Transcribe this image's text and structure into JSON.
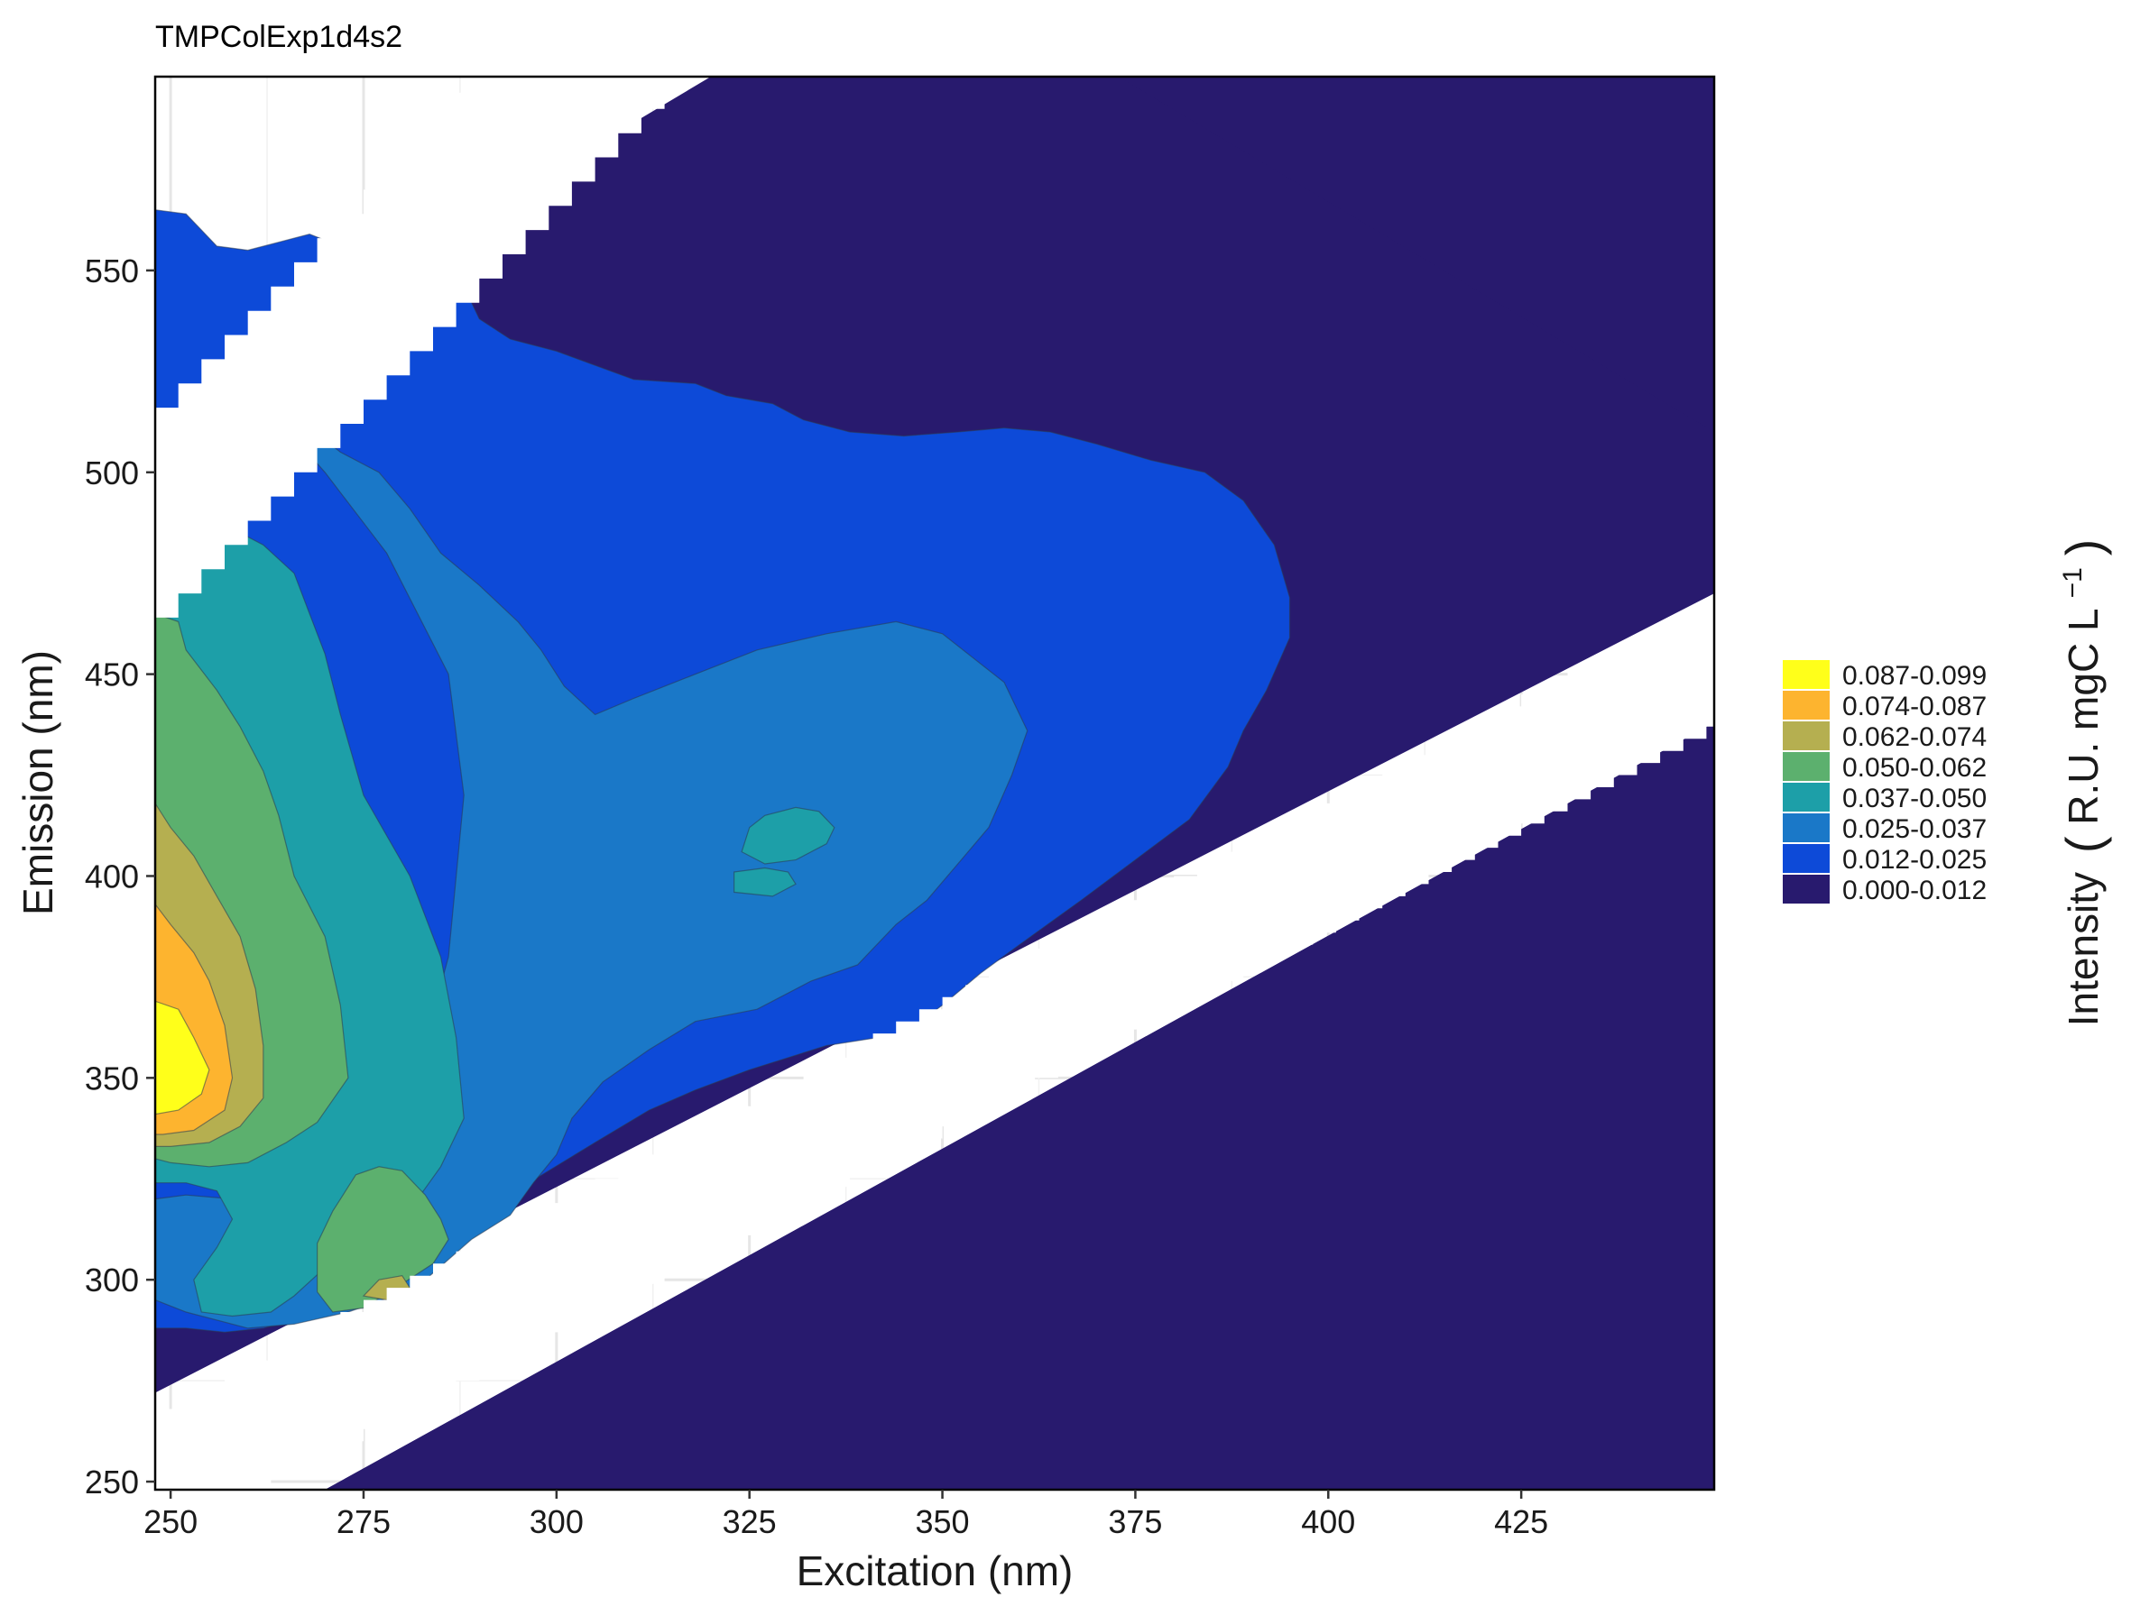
{
  "chart_data": {
    "type": "heatmap",
    "subtype": "filled-contour",
    "title": "TMPColExp1d4s2",
    "xlabel": "Excitation (nm)",
    "ylabel": "Emission (nm)",
    "xlim": [
      248,
      450
    ],
    "ylim": [
      248,
      598
    ],
    "x_ticks": [
      250,
      275,
      300,
      325,
      350,
      375,
      400,
      425
    ],
    "y_ticks": [
      250,
      300,
      350,
      400,
      450,
      500,
      550
    ],
    "grid": true,
    "legend_position": "right",
    "legend": {
      "title_main": "Intensity",
      "title_units": "R.U. mgC L",
      "title_exponent": "−1",
      "entries": [
        {
          "label": "0.087-0.099",
          "color": "#FFFF1A"
        },
        {
          "label": "0.074-0.087",
          "color": "#FDB42F"
        },
        {
          "label": "0.062-0.074",
          "color": "#B5AF50"
        },
        {
          "label": "0.050-0.062",
          "color": "#5CB06E"
        },
        {
          "label": "0.037-0.050",
          "color": "#1D9FA8"
        },
        {
          "label": "0.025-0.037",
          "color": "#1A78C8"
        },
        {
          "label": "0.012-0.025",
          "color": "#0D4AD8"
        },
        {
          "label": "0.000-0.012",
          "color": "#281A6E"
        }
      ]
    },
    "masked_regions": [
      {
        "name": "rayleigh-first-order",
        "description": "white band where emission approx equals excitation"
      },
      {
        "name": "rayleigh-second-order",
        "description": "white band where emission approx equals twice excitation"
      }
    ],
    "contour_levels": [
      0.012,
      0.025,
      0.037,
      0.05,
      0.062,
      0.074,
      0.087,
      0.099
    ],
    "peaks": [
      {
        "ex": 250,
        "em": 350,
        "range": "0.087-0.099"
      },
      {
        "ex": 330,
        "em": 410,
        "range": "0.037-0.050"
      }
    ],
    "regions": [
      {
        "range": "0.012-0.025",
        "polygon": [
          [
            248,
            565
          ],
          [
            252,
            564
          ],
          [
            256,
            556
          ],
          [
            260,
            555
          ],
          [
            264,
            557
          ],
          [
            268,
            559
          ],
          [
            272,
            556
          ],
          [
            279,
            555
          ],
          [
            283,
            553
          ],
          [
            288,
            546
          ],
          [
            290,
            538
          ],
          [
            294,
            533
          ],
          [
            300,
            530
          ],
          [
            310,
            523
          ],
          [
            318,
            522
          ],
          [
            322,
            519
          ],
          [
            328,
            517
          ],
          [
            332,
            513
          ],
          [
            338,
            510
          ],
          [
            345,
            509
          ],
          [
            352,
            510
          ],
          [
            358,
            511
          ],
          [
            364,
            510
          ],
          [
            370,
            507
          ],
          [
            377,
            503
          ],
          [
            384,
            500
          ],
          [
            389,
            493
          ],
          [
            393,
            482
          ],
          [
            395,
            469
          ],
          [
            395,
            459
          ],
          [
            392,
            446
          ],
          [
            389,
            436
          ],
          [
            387,
            427
          ],
          [
            382,
            414
          ],
          [
            375,
            404
          ],
          [
            368,
            394
          ],
          [
            360,
            383
          ],
          [
            355,
            376
          ],
          [
            350,
            368
          ],
          [
            345,
            361
          ],
          [
            335,
            358
          ],
          [
            325,
            352
          ],
          [
            318,
            347
          ],
          [
            312,
            342
          ],
          [
            305,
            334
          ],
          [
            299,
            327
          ],
          [
            293,
            320
          ],
          [
            290,
            313
          ],
          [
            287,
            308
          ],
          [
            284,
            303
          ],
          [
            280,
            299
          ],
          [
            274,
            295
          ],
          [
            268,
            291
          ],
          [
            262,
            288
          ],
          [
            257,
            287
          ],
          [
            252,
            288
          ],
          [
            248,
            288
          ]
        ]
      },
      {
        "range": "0.025-0.037",
        "polygon": [
          [
            264,
            513
          ],
          [
            268,
            511
          ],
          [
            272,
            505
          ],
          [
            277,
            500
          ],
          [
            281,
            491
          ],
          [
            285,
            480
          ],
          [
            290,
            472
          ],
          [
            295,
            463
          ],
          [
            298,
            456
          ],
          [
            301,
            447
          ],
          [
            305,
            440
          ],
          [
            310,
            444
          ],
          [
            318,
            450
          ],
          [
            326,
            456
          ],
          [
            335,
            460
          ],
          [
            344,
            463
          ],
          [
            350,
            460
          ],
          [
            358,
            448
          ],
          [
            361,
            436
          ],
          [
            359,
            425
          ],
          [
            356,
            412
          ],
          [
            352,
            403
          ],
          [
            348,
            394
          ],
          [
            344,
            388
          ],
          [
            339,
            378
          ],
          [
            333,
            374
          ],
          [
            326,
            367
          ],
          [
            318,
            364
          ],
          [
            312,
            357
          ],
          [
            306,
            349
          ],
          [
            302,
            340
          ],
          [
            300,
            331
          ],
          [
            297,
            324
          ],
          [
            294,
            316
          ],
          [
            289,
            310
          ],
          [
            286,
            305
          ],
          [
            283,
            300
          ],
          [
            279,
            296
          ],
          [
            273,
            292
          ],
          [
            266,
            289
          ],
          [
            260,
            288
          ],
          [
            252,
            292
          ],
          [
            248,
            295
          ],
          [
            248,
            320
          ],
          [
            252,
            321
          ],
          [
            258,
            320
          ],
          [
            262,
            322
          ],
          [
            266,
            326
          ],
          [
            270,
            330
          ],
          [
            276,
            336
          ],
          [
            282,
            352
          ],
          [
            286,
            380
          ],
          [
            288,
            420
          ],
          [
            286,
            450
          ],
          [
            278,
            480
          ],
          [
            270,
            500
          ]
        ]
      },
      {
        "range": "0.037-0.050",
        "polygon": [
          [
            249,
            485
          ],
          [
            252,
            488
          ],
          [
            256,
            488
          ],
          [
            262,
            482
          ],
          [
            266,
            475
          ],
          [
            268,
            465
          ],
          [
            270,
            455
          ],
          [
            272,
            440
          ],
          [
            275,
            420
          ],
          [
            281,
            400
          ],
          [
            285,
            380
          ],
          [
            287,
            360
          ],
          [
            288,
            340
          ],
          [
            285,
            328
          ],
          [
            282,
            320
          ],
          [
            279,
            315
          ],
          [
            275,
            310
          ],
          [
            270,
            303
          ],
          [
            266,
            296
          ],
          [
            263,
            292
          ],
          [
            258,
            291
          ],
          [
            254,
            292
          ],
          [
            253,
            300
          ],
          [
            256,
            308
          ],
          [
            258,
            315
          ],
          [
            256,
            322
          ],
          [
            252,
            324
          ],
          [
            248,
            324
          ]
        ]
      },
      {
        "range": "0.037-0.050",
        "polygon": [
          [
            325,
            412
          ],
          [
            327,
            415
          ],
          [
            331,
            417
          ],
          [
            334,
            416
          ],
          [
            336,
            412
          ],
          [
            335,
            408
          ],
          [
            331,
            404
          ],
          [
            327,
            403
          ],
          [
            324,
            406
          ]
        ]
      },
      {
        "range": "0.037-0.050",
        "polygon": [
          [
            323,
            401
          ],
          [
            327,
            402
          ],
          [
            330,
            401
          ],
          [
            331,
            398
          ],
          [
            328,
            395
          ],
          [
            323,
            396
          ]
        ]
      },
      {
        "range": "0.050-0.062",
        "polygon": [
          [
            248,
            465
          ],
          [
            251,
            463
          ],
          [
            252,
            456
          ],
          [
            256,
            446
          ],
          [
            259,
            437
          ],
          [
            262,
            426
          ],
          [
            264,
            415
          ],
          [
            266,
            400
          ],
          [
            270,
            385
          ],
          [
            272,
            368
          ],
          [
            273,
            350
          ],
          [
            269,
            339
          ],
          [
            265,
            334
          ],
          [
            260,
            329
          ],
          [
            255,
            328
          ],
          [
            250,
            329
          ],
          [
            248,
            330
          ]
        ]
      },
      {
        "range": "0.050-0.062",
        "polygon": [
          [
            269,
            309
          ],
          [
            271,
            317
          ],
          [
            274,
            326
          ],
          [
            277,
            328
          ],
          [
            280,
            327
          ],
          [
            283,
            321
          ],
          [
            285,
            315
          ],
          [
            286,
            310
          ],
          [
            284,
            304
          ],
          [
            280,
            299
          ],
          [
            275,
            293
          ],
          [
            271,
            292
          ],
          [
            269,
            297
          ]
        ]
      },
      {
        "range": "0.062-0.074",
        "polygon": [
          [
            248,
            418
          ],
          [
            250,
            412
          ],
          [
            253,
            405
          ],
          [
            256,
            395
          ],
          [
            259,
            385
          ],
          [
            261,
            372
          ],
          [
            262,
            358
          ],
          [
            262,
            345
          ],
          [
            259,
            338
          ],
          [
            255,
            334
          ],
          [
            250,
            333
          ],
          [
            248,
            333
          ]
        ]
      },
      {
        "range": "0.062-0.074",
        "polygon": [
          [
            275,
            296
          ],
          [
            277,
            300
          ],
          [
            280,
            301
          ],
          [
            281,
            298
          ],
          [
            278,
            295
          ]
        ]
      },
      {
        "range": "0.074-0.087",
        "polygon": [
          [
            248,
            393
          ],
          [
            250,
            388
          ],
          [
            253,
            381
          ],
          [
            255,
            374
          ],
          [
            257,
            363
          ],
          [
            258,
            350
          ],
          [
            257,
            342
          ],
          [
            253,
            337
          ],
          [
            249,
            336
          ],
          [
            248,
            336
          ]
        ]
      },
      {
        "range": "0.087-0.099",
        "polygon": [
          [
            248,
            369
          ],
          [
            251,
            367
          ],
          [
            253,
            360
          ],
          [
            255,
            352
          ],
          [
            254,
            346
          ],
          [
            251,
            342
          ],
          [
            248,
            341
          ]
        ]
      }
    ]
  }
}
